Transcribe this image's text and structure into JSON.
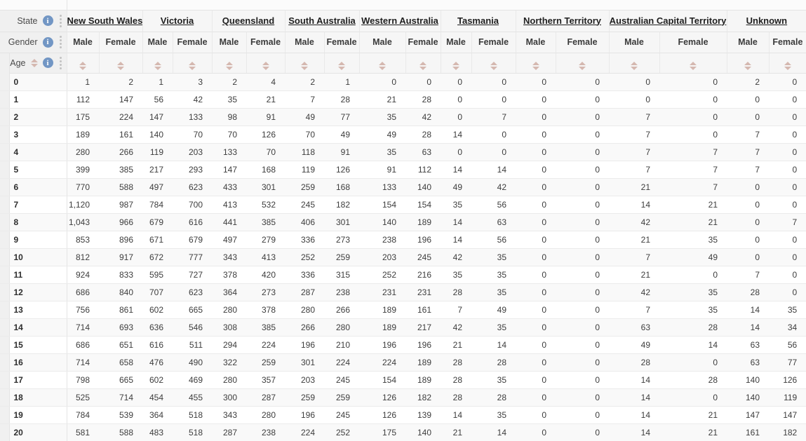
{
  "pivot": {
    "corner": {
      "state_label": "State",
      "gender_label": "Gender",
      "age_label": "Age"
    },
    "states": [
      "New South Wales",
      "Victoria",
      "Queensland",
      "South Australia",
      "Western Australia",
      "Tasmania",
      "Northern Territory",
      "Australian Capital Territory",
      "Unknown"
    ],
    "genders": [
      "Male",
      "Female"
    ],
    "column_order_note": "18 value columns = each state crossed with Male,Female in states order",
    "rows": [
      {
        "age": "0",
        "values": [
          "1",
          "2",
          "1",
          "3",
          "2",
          "4",
          "2",
          "1",
          "0",
          "0",
          "0",
          "0",
          "0",
          "0",
          "0",
          "0",
          "2",
          "0"
        ]
      },
      {
        "age": "1",
        "values": [
          "112",
          "147",
          "56",
          "42",
          "35",
          "21",
          "7",
          "28",
          "21",
          "28",
          "0",
          "0",
          "0",
          "0",
          "0",
          "0",
          "0",
          "0"
        ]
      },
      {
        "age": "2",
        "values": [
          "175",
          "224",
          "147",
          "133",
          "98",
          "91",
          "49",
          "77",
          "35",
          "42",
          "0",
          "7",
          "0",
          "0",
          "7",
          "0",
          "0",
          "0"
        ]
      },
      {
        "age": "3",
        "values": [
          "189",
          "161",
          "140",
          "70",
          "70",
          "126",
          "70",
          "49",
          "49",
          "28",
          "14",
          "0",
          "0",
          "0",
          "7",
          "0",
          "7",
          "0"
        ]
      },
      {
        "age": "4",
        "values": [
          "280",
          "266",
          "119",
          "203",
          "133",
          "70",
          "118",
          "91",
          "35",
          "63",
          "0",
          "0",
          "0",
          "0",
          "7",
          "7",
          "7",
          "0"
        ]
      },
      {
        "age": "5",
        "values": [
          "399",
          "385",
          "217",
          "293",
          "147",
          "168",
          "119",
          "126",
          "91",
          "112",
          "14",
          "14",
          "0",
          "0",
          "7",
          "7",
          "7",
          "0"
        ]
      },
      {
        "age": "6",
        "values": [
          "770",
          "588",
          "497",
          "623",
          "433",
          "301",
          "259",
          "168",
          "133",
          "140",
          "49",
          "42",
          "0",
          "0",
          "21",
          "7",
          "0",
          "0"
        ]
      },
      {
        "age": "7",
        "values": [
          "1,120",
          "987",
          "784",
          "700",
          "413",
          "532",
          "245",
          "182",
          "154",
          "154",
          "35",
          "56",
          "0",
          "0",
          "14",
          "21",
          "0",
          "0"
        ]
      },
      {
        "age": "8",
        "values": [
          "1,043",
          "966",
          "679",
          "616",
          "441",
          "385",
          "406",
          "301",
          "140",
          "189",
          "14",
          "63",
          "0",
          "0",
          "42",
          "21",
          "0",
          "7"
        ]
      },
      {
        "age": "9",
        "values": [
          "853",
          "896",
          "671",
          "679",
          "497",
          "279",
          "336",
          "273",
          "238",
          "196",
          "14",
          "56",
          "0",
          "0",
          "21",
          "35",
          "0",
          "0"
        ]
      },
      {
        "age": "10",
        "values": [
          "812",
          "917",
          "672",
          "777",
          "343",
          "413",
          "252",
          "259",
          "203",
          "245",
          "42",
          "35",
          "0",
          "0",
          "7",
          "49",
          "0",
          "0"
        ]
      },
      {
        "age": "11",
        "values": [
          "924",
          "833",
          "595",
          "727",
          "378",
          "420",
          "336",
          "315",
          "252",
          "216",
          "35",
          "35",
          "0",
          "0",
          "21",
          "0",
          "7",
          "0"
        ]
      },
      {
        "age": "12",
        "values": [
          "686",
          "840",
          "707",
          "623",
          "364",
          "273",
          "287",
          "238",
          "231",
          "231",
          "28",
          "35",
          "0",
          "0",
          "42",
          "35",
          "28",
          "0"
        ]
      },
      {
        "age": "13",
        "values": [
          "756",
          "861",
          "602",
          "665",
          "280",
          "378",
          "280",
          "266",
          "189",
          "161",
          "7",
          "49",
          "0",
          "0",
          "7",
          "35",
          "14",
          "35"
        ]
      },
      {
        "age": "14",
        "values": [
          "714",
          "693",
          "636",
          "546",
          "308",
          "385",
          "266",
          "280",
          "189",
          "217",
          "42",
          "35",
          "0",
          "0",
          "63",
          "28",
          "14",
          "34"
        ]
      },
      {
        "age": "15",
        "values": [
          "686",
          "651",
          "616",
          "511",
          "294",
          "224",
          "196",
          "210",
          "196",
          "196",
          "21",
          "14",
          "0",
          "0",
          "49",
          "14",
          "63",
          "56"
        ]
      },
      {
        "age": "16",
        "values": [
          "714",
          "658",
          "476",
          "490",
          "322",
          "259",
          "301",
          "224",
          "224",
          "189",
          "28",
          "28",
          "0",
          "0",
          "28",
          "0",
          "63",
          "77"
        ]
      },
      {
        "age": "17",
        "values": [
          "798",
          "665",
          "602",
          "469",
          "280",
          "357",
          "203",
          "245",
          "154",
          "189",
          "28",
          "35",
          "0",
          "0",
          "14",
          "28",
          "140",
          "126"
        ]
      },
      {
        "age": "18",
        "values": [
          "525",
          "714",
          "454",
          "455",
          "300",
          "287",
          "259",
          "259",
          "126",
          "182",
          "28",
          "28",
          "0",
          "0",
          "14",
          "0",
          "140",
          "119"
        ]
      },
      {
        "age": "19",
        "values": [
          "784",
          "539",
          "364",
          "518",
          "343",
          "280",
          "196",
          "245",
          "126",
          "139",
          "14",
          "35",
          "0",
          "0",
          "14",
          "21",
          "147",
          "147"
        ]
      },
      {
        "age": "20",
        "values": [
          "581",
          "588",
          "483",
          "518",
          "287",
          "238",
          "224",
          "252",
          "175",
          "140",
          "21",
          "14",
          "0",
          "0",
          "14",
          "21",
          "161",
          "182"
        ]
      }
    ],
    "icons": {
      "info": "info-icon",
      "kebab": "kebab-menu-icon",
      "sort": "sort-arrows-icon"
    },
    "colors": {
      "info_icon": "#7296c4",
      "sort_arrow": "#d5b8b0",
      "corner_bg": "#f0f0f0",
      "header_bg": "#f6f6f6",
      "stripe_bg": "#f9f9f9",
      "border": "#e4e4e4"
    }
  }
}
